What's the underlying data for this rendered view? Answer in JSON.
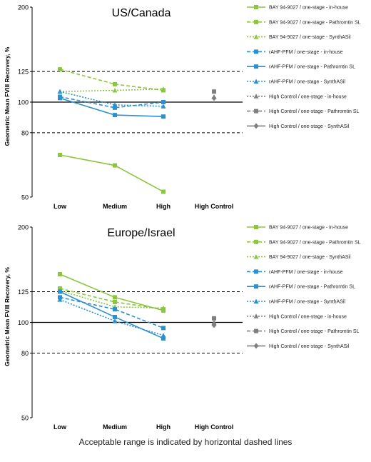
{
  "style": {
    "green": "#8cc63f",
    "blue": "#2c8fd0",
    "gray": "#7f7f7f"
  },
  "footnote": "Acceptable range is indicated by horizontal dashed lines",
  "chart_data": [
    {
      "type": "line",
      "title": "US/Canada",
      "ylabel": "Geometric Mean FVIII Recovery, %",
      "xlabel": "",
      "y_scale": "log",
      "ylim": [
        50,
        200
      ],
      "yticks": [
        50,
        80,
        100,
        125,
        200
      ],
      "categories": [
        "Low",
        "Medium",
        "High",
        "High Control"
      ],
      "reference_lines": [
        {
          "y": 125,
          "style": "dashed"
        },
        {
          "y": 100,
          "style": "solid"
        },
        {
          "y": 80,
          "style": "dashed"
        }
      ],
      "legend_position": "right",
      "series": [
        {
          "name": "BAY 94-9027 / one-stage - in-house",
          "color": "#8cc63f",
          "dash": "solid",
          "marker": "square",
          "values": [
            68,
            63,
            52,
            null
          ]
        },
        {
          "name": "BAY 94-9027 / one-stage - Pathromtin SL",
          "color": "#8cc63f",
          "dash": "dashed",
          "marker": "square",
          "values": [
            127,
            114,
            109,
            null
          ]
        },
        {
          "name": "BAY 94-9027 / one-stage - SynthASil",
          "color": "#8cc63f",
          "dash": "dotted",
          "marker": "triangle",
          "values": [
            108,
            109,
            110,
            null
          ]
        },
        {
          "name": "rAHF-PFM / one-stage - in-house",
          "color": "#2c8fd0",
          "dash": "dashed",
          "marker": "square",
          "values": [
            104,
            96,
            100,
            null
          ]
        },
        {
          "name": "rAHF-PFM / one-stage - Pathromtin SL",
          "color": "#2c8fd0",
          "dash": "solid",
          "marker": "square",
          "values": [
            103,
            91,
            90,
            null
          ]
        },
        {
          "name": "rAHF-PFM / one-stage - SynthASil",
          "color": "#2c8fd0",
          "dash": "dotted",
          "marker": "triangle",
          "values": [
            108,
            98,
            97,
            null
          ]
        },
        {
          "name": "High Control / one-stage - in-house",
          "color": "#7f7f7f",
          "dash": "dotted",
          "marker": "triangle",
          "values": [
            null,
            null,
            null,
            104
          ]
        },
        {
          "name": "High Control / one-stage - Pathromtin SL",
          "color": "#7f7f7f",
          "dash": "dashed",
          "marker": "square",
          "values": [
            null,
            null,
            null,
            108
          ]
        },
        {
          "name": "High Control / one-stage - SynthASil",
          "color": "#7f7f7f",
          "dash": "solid",
          "marker": "diamond",
          "values": [
            null,
            null,
            null,
            103
          ]
        }
      ]
    },
    {
      "type": "line",
      "title": "Europe/Israel",
      "ylabel": "Geometric Mean FVIII Recovery, %",
      "xlabel": "",
      "y_scale": "log",
      "ylim": [
        50,
        200
      ],
      "yticks": [
        50,
        80,
        100,
        125,
        200
      ],
      "categories": [
        "Low",
        "Medium",
        "High",
        "High Control"
      ],
      "reference_lines": [
        {
          "y": 125,
          "style": "dashed"
        },
        {
          "y": 100,
          "style": "solid"
        },
        {
          "y": 80,
          "style": "dashed"
        }
      ],
      "legend_position": "right",
      "series": [
        {
          "name": "BAY 94-9027 / one-stage - in-house",
          "color": "#8cc63f",
          "dash": "solid",
          "marker": "square",
          "values": [
            142,
            120,
            109,
            null
          ]
        },
        {
          "name": "BAY 94-9027 / one-stage - Pathromtin SL",
          "color": "#8cc63f",
          "dash": "dashed",
          "marker": "square",
          "values": [
            128,
            116,
            110,
            null
          ]
        },
        {
          "name": "BAY 94-9027 / one-stage - SynthASil",
          "color": "#8cc63f",
          "dash": "dotted",
          "marker": "triangle",
          "values": [
            126,
            112,
            111,
            null
          ]
        },
        {
          "name": "rAHF-PFM / one-stage - in-house",
          "color": "#2c8fd0",
          "dash": "dashed",
          "marker": "square",
          "values": [
            120,
            110,
            96,
            null
          ]
        },
        {
          "name": "rAHF-PFM / one-stage - Pathromtin SL",
          "color": "#2c8fd0",
          "dash": "solid",
          "marker": "square",
          "values": [
            125,
            104,
            89,
            null
          ]
        },
        {
          "name": "rAHF-PFM / one-stage - SynthASil",
          "color": "#2c8fd0",
          "dash": "dotted",
          "marker": "triangle",
          "values": [
            118,
            101,
            91,
            null
          ]
        },
        {
          "name": "High Control / one-stage - in-house",
          "color": "#7f7f7f",
          "dash": "dotted",
          "marker": "triangle",
          "values": [
            null,
            null,
            null,
            100
          ]
        },
        {
          "name": "High Control / one-stage - Pathromtin SL",
          "color": "#7f7f7f",
          "dash": "dashed",
          "marker": "square",
          "values": [
            null,
            null,
            null,
            103
          ]
        },
        {
          "name": "High Control / one-stage - SynthASil",
          "color": "#7f7f7f",
          "dash": "solid",
          "marker": "diamond",
          "values": [
            null,
            null,
            null,
            98
          ]
        }
      ]
    }
  ]
}
